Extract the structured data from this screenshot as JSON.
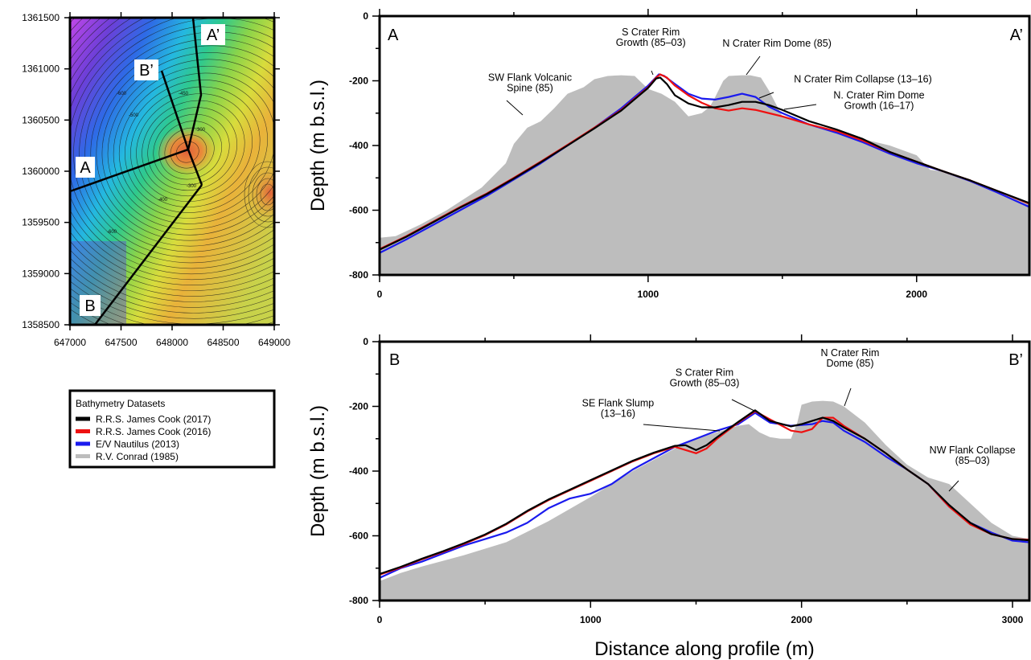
{
  "colors": {
    "rrs_2017": "#000000",
    "rrs_2016": "#ee1111",
    "nautilus_2013": "#1a1aee",
    "conrad_1985": "#bdbdbd"
  },
  "map": {
    "x_ticks": [
      "647000",
      "647500",
      "648000",
      "648500",
      "649000"
    ],
    "y_ticks": [
      "1361500",
      "1361000",
      "1360500",
      "1360000",
      "1359500",
      "1359000",
      "1358500"
    ],
    "x_range": [
      647000,
      649000
    ],
    "y_range": [
      1358500,
      1361500
    ],
    "profile_labels": {
      "a": "A",
      "a_prime": "A’",
      "b": "B",
      "b_prime": "B’"
    },
    "contour_labels": [
      "-450",
      "-300",
      "-300",
      "-600",
      "-500",
      "-400",
      "-600"
    ]
  },
  "legend": {
    "title": "Bathymetry Datasets",
    "entries": [
      {
        "label": "R.R.S. James Cook (2017)",
        "color": "#000000"
      },
      {
        "label": "R.R.S. James Cook (2016)",
        "color": "#ee1111"
      },
      {
        "label": "E/V Nautilus (2013)",
        "color": "#1a1aee"
      },
      {
        "label": "R.V. Conrad (1985)",
        "color": "#bdbdbd"
      }
    ]
  },
  "axes": {
    "ylabel_top": "Depth (m b.s.l.)",
    "ylabel_bottom": "Depth (m b.s.l.)",
    "xlabel": "Distance along profile (m)"
  },
  "chart_data": [
    {
      "type": "area",
      "profile": "A–A’",
      "corner_left": "A",
      "corner_right": "A’",
      "xlim": [
        0,
        2420
      ],
      "ylim": [
        -800,
        0
      ],
      "x_ticks": [
        "0",
        "1000",
        "2000"
      ],
      "x_tick_values": [
        0,
        1000,
        2000
      ],
      "y_ticks": [
        "0",
        "-200",
        "-400",
        "-600",
        "-800"
      ],
      "y_tick_values": [
        0,
        -200,
        -400,
        -600,
        -800
      ],
      "series": [
        {
          "name": "R.V. Conrad (1985)",
          "kind": "fill",
          "color": "#bdbdbd",
          "x": [
            0,
            60,
            150,
            250,
            380,
            470,
            500,
            550,
            600,
            650,
            700,
            760,
            800,
            850,
            900,
            950,
            1000,
            1050,
            1100,
            1150,
            1200,
            1230,
            1250,
            1280,
            1300,
            1350,
            1380,
            1420,
            1450,
            1500,
            1600,
            1700,
            1800,
            1900,
            2000,
            2050,
            2100,
            2200,
            2300,
            2420
          ],
          "y": [
            -685,
            -680,
            -645,
            -600,
            -530,
            -455,
            -395,
            -345,
            -325,
            -285,
            -240,
            -220,
            -195,
            -185,
            -183,
            -185,
            -225,
            -240,
            -265,
            -310,
            -300,
            -280,
            -250,
            -200,
            -185,
            -183,
            -183,
            -190,
            -230,
            -310,
            -335,
            -360,
            -380,
            -400,
            -430,
            -475,
            -480,
            -505,
            -545,
            -580
          ]
        },
        {
          "name": "E/V Nautilus (2013)",
          "kind": "line",
          "color": "#1a1aee",
          "x": [
            0,
            100,
            200,
            300,
            400,
            500,
            600,
            700,
            800,
            900,
            950,
            1000,
            1040,
            1060,
            1100,
            1150,
            1200,
            1250,
            1300,
            1350,
            1400,
            1450,
            1500,
            1600,
            1700,
            1800,
            1900,
            2000,
            2100,
            2200,
            2300,
            2420
          ],
          "y": [
            -732,
            -690,
            -645,
            -600,
            -555,
            -505,
            -455,
            -400,
            -345,
            -285,
            -250,
            -215,
            -180,
            -185,
            -210,
            -240,
            -255,
            -258,
            -250,
            -240,
            -250,
            -280,
            -300,
            -335,
            -360,
            -390,
            -425,
            -455,
            -480,
            -510,
            -545,
            -590
          ]
        },
        {
          "name": "R.R.S. James Cook (2016)",
          "kind": "line",
          "color": "#ee1111",
          "x": [
            0,
            100,
            200,
            300,
            400,
            500,
            600,
            700,
            800,
            900,
            950,
            1000,
            1030,
            1045,
            1070,
            1100,
            1150,
            1200,
            1250,
            1300,
            1350,
            1400,
            1450,
            1500,
            1600,
            1700,
            1800,
            1900,
            2000,
            2100,
            2200,
            2300,
            2420
          ],
          "y": [
            -720,
            -680,
            -635,
            -590,
            -548,
            -500,
            -450,
            -398,
            -345,
            -290,
            -255,
            -220,
            -190,
            -180,
            -190,
            -215,
            -245,
            -268,
            -285,
            -292,
            -285,
            -290,
            -300,
            -310,
            -335,
            -355,
            -385,
            -420,
            -450,
            -480,
            -508,
            -540,
            -580
          ]
        },
        {
          "name": "R.R.S. James Cook (2017)",
          "kind": "line",
          "color": "#000000",
          "x": [
            0,
            100,
            200,
            300,
            400,
            500,
            600,
            700,
            800,
            900,
            950,
            1000,
            1030,
            1045,
            1070,
            1100,
            1150,
            1200,
            1250,
            1300,
            1350,
            1400,
            1450,
            1500,
            1600,
            1700,
            1800,
            1900,
            2000,
            2100,
            2200,
            2300,
            2420
          ],
          "y": [
            -722,
            -682,
            -637,
            -592,
            -550,
            -502,
            -452,
            -400,
            -347,
            -292,
            -257,
            -222,
            -193,
            -190,
            -210,
            -245,
            -270,
            -282,
            -282,
            -275,
            -265,
            -265,
            -275,
            -290,
            -325,
            -350,
            -380,
            -420,
            -450,
            -480,
            -508,
            -540,
            -578
          ]
        }
      ],
      "annotations": [
        {
          "lines": [
            "SW Flank Volcanic",
            "Spine (85)"
          ],
          "x": 560,
          "y": -200
        },
        {
          "lines": [
            "S Crater Rim",
            "Growth (85–03)"
          ],
          "x": 1010,
          "y": -60
        },
        {
          "lines": [
            "N Crater Rim Dome (85)"
          ],
          "x": 1480,
          "y": -95
        },
        {
          "lines": [
            "N Crater Rim Collapse (13–16)"
          ],
          "x": 1800,
          "y": -205
        },
        {
          "lines": [
            "N. Crater Rim Dome",
            "Growth (16–17)"
          ],
          "x": 1860,
          "y": -255
        }
      ]
    },
    {
      "type": "area",
      "profile": "B–B’",
      "corner_left": "B",
      "corner_right": "B’",
      "xlim": [
        0,
        3080
      ],
      "ylim": [
        -800,
        0
      ],
      "x_ticks": [
        "0",
        "1000",
        "2000",
        "3000"
      ],
      "x_tick_values": [
        0,
        1000,
        2000,
        3000
      ],
      "y_ticks": [
        "0",
        "-200",
        "-400",
        "-600",
        "-800"
      ],
      "y_tick_values": [
        0,
        -200,
        -400,
        -600,
        -800
      ],
      "series": [
        {
          "name": "R.V. Conrad (1985)",
          "kind": "fill",
          "color": "#bdbdbd",
          "x": [
            0,
            100,
            200,
            400,
            600,
            800,
            1000,
            1200,
            1400,
            1500,
            1600,
            1700,
            1750,
            1800,
            1850,
            1900,
            1950,
            1980,
            2000,
            2050,
            2100,
            2150,
            2200,
            2300,
            2400,
            2500,
            2600,
            2700,
            2800,
            2900,
            3000,
            3080
          ],
          "y": [
            -740,
            -715,
            -695,
            -660,
            -620,
            -555,
            -480,
            -400,
            -330,
            -300,
            -280,
            -260,
            -255,
            -280,
            -295,
            -300,
            -300,
            -250,
            -195,
            -185,
            -183,
            -185,
            -200,
            -250,
            -320,
            -380,
            -420,
            -440,
            -500,
            -560,
            -600,
            -610
          ]
        },
        {
          "name": "E/V Nautilus (2013)",
          "kind": "line",
          "color": "#1a1aee",
          "x": [
            0,
            100,
            200,
            300,
            400,
            500,
            600,
            700,
            800,
            900,
            1000,
            1100,
            1200,
            1300,
            1400,
            1500,
            1600,
            1700,
            1780,
            1850,
            1950,
            2050,
            2100,
            2150,
            2200,
            2300,
            2400,
            2500,
            2600,
            2700,
            2800,
            2900,
            3000,
            3080
          ],
          "y": [
            -730,
            -700,
            -680,
            -655,
            -630,
            -610,
            -590,
            -560,
            -515,
            -485,
            -470,
            -440,
            -395,
            -360,
            -325,
            -300,
            -275,
            -255,
            -220,
            -250,
            -260,
            -255,
            -245,
            -250,
            -275,
            -310,
            -355,
            -395,
            -440,
            -510,
            -560,
            -590,
            -615,
            -620
          ]
        },
        {
          "name": "R.R.S. James Cook (2016)",
          "kind": "line",
          "color": "#ee1111",
          "x": [
            0,
            100,
            200,
            300,
            400,
            500,
            600,
            700,
            800,
            900,
            1000,
            1100,
            1200,
            1300,
            1400,
            1450,
            1500,
            1550,
            1600,
            1700,
            1780,
            1850,
            1950,
            2000,
            2050,
            2100,
            2150,
            2200,
            2300,
            2400,
            2500,
            2600,
            2700,
            2800,
            2900,
            3000,
            3080
          ],
          "y": [
            -720,
            -698,
            -673,
            -650,
            -625,
            -598,
            -565,
            -525,
            -490,
            -460,
            -430,
            -400,
            -370,
            -345,
            -325,
            -335,
            -345,
            -330,
            -300,
            -250,
            -215,
            -240,
            -275,
            -280,
            -270,
            -235,
            -235,
            -260,
            -300,
            -345,
            -395,
            -440,
            -510,
            -565,
            -595,
            -610,
            -612
          ]
        },
        {
          "name": "R.R.S. James Cook (2017)",
          "kind": "line",
          "color": "#000000",
          "x": [
            0,
            100,
            200,
            300,
            400,
            500,
            600,
            700,
            800,
            900,
            1000,
            1100,
            1200,
            1300,
            1400,
            1450,
            1500,
            1550,
            1600,
            1700,
            1780,
            1850,
            1950,
            2000,
            2050,
            2100,
            2150,
            2200,
            2300,
            2400,
            2500,
            2600,
            2700,
            2800,
            2900,
            3000,
            3080
          ],
          "y": [
            -718,
            -696,
            -671,
            -648,
            -623,
            -596,
            -563,
            -523,
            -488,
            -458,
            -428,
            -398,
            -368,
            -343,
            -322,
            -320,
            -335,
            -320,
            -295,
            -248,
            -212,
            -245,
            -262,
            -255,
            -245,
            -235,
            -245,
            -265,
            -300,
            -345,
            -395,
            -440,
            -505,
            -560,
            -595,
            -610,
            -614
          ]
        }
      ],
      "annotations": [
        {
          "lines": [
            "S Crater Rim",
            "Growth (85–03)"
          ],
          "x": 1540,
          "y": -105
        },
        {
          "lines": [
            "SE Flank Slump",
            "(13–16)"
          ],
          "x": 1130,
          "y": -200
        },
        {
          "lines": [
            "N Crater Rim",
            "Dome (85)"
          ],
          "x": 2230,
          "y": -45
        },
        {
          "lines": [
            "NW Flank Collapse",
            "(85–03)"
          ],
          "x": 2810,
          "y": -345
        }
      ]
    }
  ]
}
